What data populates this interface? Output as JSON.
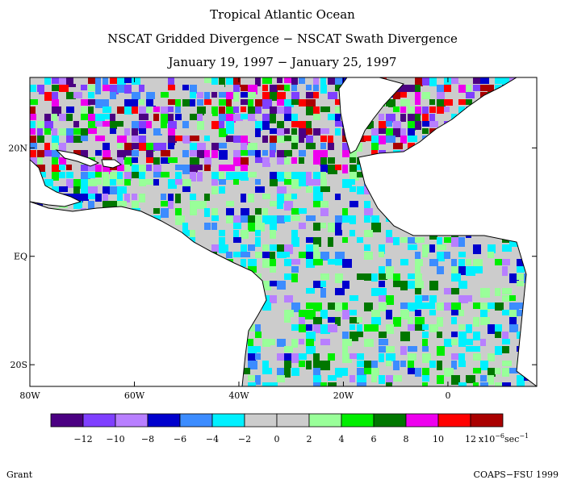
{
  "titles": {
    "line1": "Tropical Atlantic Ocean",
    "line2": "NSCAT Gridded Divergence − NSCAT Swath Divergence",
    "line3": "January 19, 1997 − January 25, 1997"
  },
  "map": {
    "lon_labels": [
      "80W",
      "60W",
      "40W",
      "20W",
      "0"
    ],
    "lon_values": [
      -80,
      -60,
      -40,
      -20,
      0
    ],
    "lat_labels": [
      "20N",
      "EQ",
      "20S"
    ],
    "lat_values": [
      20,
      0,
      -20
    ],
    "lon_range": [
      -80,
      17
    ],
    "lat_range": [
      33,
      -24
    ]
  },
  "colorbar": {
    "colors": [
      "#4b0082",
      "#7f3fff",
      "#b87fff",
      "#0000cd",
      "#3c8cff",
      "#00f0ff",
      "#cccccc",
      "#cccccc",
      "#99ff99",
      "#00ee00",
      "#007700",
      "#ee00ee",
      "#ff0000",
      "#aa0000"
    ],
    "labels": [
      "−12",
      "−10",
      "−8",
      "−6",
      "−4",
      "−2",
      "0",
      "2",
      "4",
      "6",
      "8",
      "10",
      "12"
    ],
    "units": "x10",
    "units_exp": "−6",
    "units_tail": "sec",
    "units_tail_exp": "−1"
  },
  "footer": {
    "left": "Grant",
    "right": "COAPS−FSU 1999"
  }
}
